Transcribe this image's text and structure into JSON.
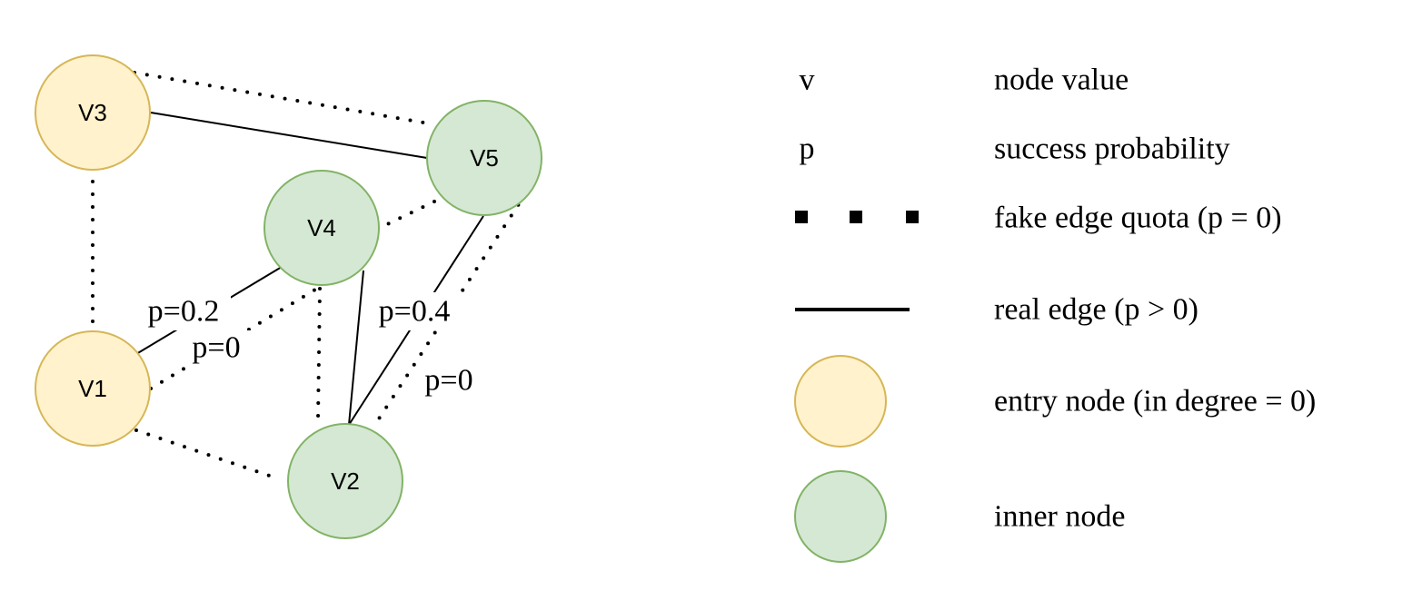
{
  "nodes": [
    {
      "id": "V3",
      "label": "V3",
      "kind": "entry"
    },
    {
      "id": "V5",
      "label": "V5",
      "kind": "inner"
    },
    {
      "id": "V4",
      "label": "V4",
      "kind": "inner"
    },
    {
      "id": "V1",
      "label": "V1",
      "kind": "entry"
    },
    {
      "id": "V2",
      "label": "V2",
      "kind": "inner"
    }
  ],
  "edge_labels": {
    "v1_v4_real": "p=0.2",
    "v1_v4_fake": "p=0",
    "v5_v2_real": "p=0.4",
    "v5_v2_fake": "p=0"
  },
  "legend": {
    "node_value": {
      "symbol": "v",
      "text": "node value"
    },
    "success_probability": {
      "symbol": "p",
      "text": "success probability"
    },
    "fake_edge": {
      "text": "fake edge quota (p = 0)"
    },
    "real_edge": {
      "text": "real edge (p > 0)"
    },
    "entry_node": {
      "text": "entry node (in degree = 0)"
    },
    "inner_node": {
      "text": "inner node"
    }
  },
  "colors": {
    "entry_fill": "#fff2cc",
    "entry_stroke": "#d6b656",
    "inner_fill": "#d5e8d4",
    "inner_stroke": "#82b366"
  }
}
